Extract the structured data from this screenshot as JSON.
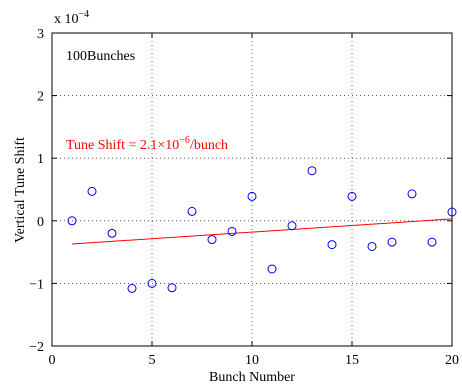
{
  "chart_data": {
    "type": "scatter",
    "xlabel": "Bunch Number",
    "ylabel": "Vertical Tune Shift",
    "y_exponent_label": "x 10",
    "y_exponent_power": "−4",
    "xlim": [
      0,
      20
    ],
    "ylim": [
      -2,
      3
    ],
    "xticks": [
      0,
      5,
      10,
      15,
      20
    ],
    "yticks": [
      -2,
      -1,
      0,
      1,
      2,
      3
    ],
    "ytick_labels": [
      "−2",
      "−1",
      "0",
      "1",
      "2",
      "3"
    ],
    "grid": true,
    "grid_style": "dotted",
    "series": [
      {
        "marker": "circle-open",
        "color": "#0000ff",
        "x": [
          1,
          2,
          3,
          4,
          5,
          6,
          7,
          8,
          9,
          10,
          11,
          12,
          13,
          14,
          15,
          16,
          17,
          18,
          19,
          20
        ],
        "y": [
          0.0,
          0.47,
          -0.2,
          -1.08,
          -1.0,
          -1.07,
          0.15,
          -0.3,
          -0.17,
          0.39,
          -0.77,
          -0.08,
          0.8,
          -0.38,
          0.39,
          -0.41,
          -0.34,
          0.43,
          -0.34,
          0.14
        ]
      },
      {
        "kind": "fit-line",
        "color": "#ff0000",
        "x": [
          1,
          20
        ],
        "y": [
          -0.37,
          0.03
        ]
      }
    ],
    "annotations": [
      {
        "text": "100Bunches",
        "color": "#000000"
      },
      {
        "text_prefix": "Tune Shift = 2.1×10",
        "text_sup": "−6",
        "text_suffix": "/bunch",
        "color": "#ff0000"
      }
    ]
  }
}
